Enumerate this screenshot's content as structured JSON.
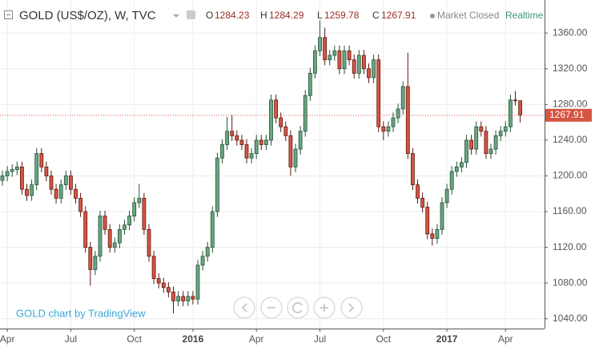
{
  "chart_data": {
    "type": "candlestick",
    "title": "GOLD (US$/OZ), W, TVC",
    "ohlc_labels": [
      "O",
      "H",
      "L",
      "C"
    ],
    "status": "Market Closed",
    "feed": "Realtime",
    "watermark": "GOLD chart by TradingView",
    "up_color": "#6ba583",
    "down_color": "#d75442",
    "grid": true,
    "categories": [
      null,
      "Apr",
      null,
      null,
      null,
      null,
      null,
      null,
      null,
      null,
      null,
      null,
      null,
      null,
      "Jul",
      null,
      null,
      null,
      null,
      null,
      null,
      null,
      null,
      null,
      null,
      null,
      null,
      "Oct",
      null,
      null,
      null,
      null,
      null,
      null,
      null,
      null,
      null,
      null,
      null,
      "2016",
      null,
      null,
      null,
      null,
      null,
      null,
      null,
      null,
      null,
      null,
      null,
      null,
      "Apr",
      null,
      null,
      null,
      null,
      null,
      null,
      null,
      null,
      null,
      null,
      null,
      null,
      "Jul",
      null,
      null,
      null,
      null,
      null,
      null,
      null,
      null,
      null,
      null,
      null,
      null,
      "Oct",
      null,
      null,
      null,
      null,
      null,
      null,
      null,
      null,
      null,
      null,
      null,
      null,
      "2017",
      null,
      null,
      null,
      null,
      null,
      null,
      null,
      null,
      null,
      null,
      null,
      "Apr",
      null,
      null,
      null
    ],
    "open": [
      1195,
      1200,
      1205,
      1207,
      1210,
      1185,
      1178,
      1190,
      1225,
      1210,
      1200,
      1185,
      1175,
      1190,
      1200,
      1185,
      1175,
      1160,
      1120,
      1095,
      1110,
      1155,
      1140,
      1120,
      1125,
      1140,
      1145,
      1155,
      1170,
      1175,
      1140,
      1110,
      1085,
      1080,
      1075,
      1070,
      1060,
      1065,
      1060,
      1065,
      1062,
      1100,
      1110,
      1120,
      1160,
      1220,
      1235,
      1250,
      1245,
      1240,
      1235,
      1220,
      1225,
      1240,
      1235,
      1240,
      1285,
      1265,
      1255,
      1245,
      1210,
      1230,
      1250,
      1290,
      1315,
      1340,
      1355,
      1330,
      1335,
      1340,
      1320,
      1340,
      1330,
      1315,
      1335,
      1320,
      1310,
      1330,
      1255,
      1250,
      1255,
      1265,
      1275,
      1300,
      1225,
      1190,
      1175,
      1165,
      1135,
      1130,
      1140,
      1170,
      1185,
      1205,
      1210,
      1215,
      1240,
      1230,
      1255,
      1250,
      1225,
      1230,
      1245,
      1250,
      1255,
      1285,
      1284.23
    ],
    "high": [
      1206,
      1211,
      1213,
      1216,
      1216,
      1191,
      1196,
      1231,
      1231,
      1216,
      1206,
      1191,
      1196,
      1206,
      1206,
      1191,
      1181,
      1166,
      1126,
      1116,
      1161,
      1161,
      1146,
      1131,
      1146,
      1151,
      1161,
      1176,
      1191,
      1181,
      1146,
      1116,
      1091,
      1086,
      1081,
      1076,
      1071,
      1071,
      1071,
      1071,
      1106,
      1116,
      1126,
      1166,
      1226,
      1241,
      1266,
      1268,
      1251,
      1246,
      1241,
      1231,
      1246,
      1246,
      1246,
      1291,
      1291,
      1271,
      1261,
      1251,
      1236,
      1256,
      1296,
      1321,
      1346,
      1374,
      1366,
      1341,
      1346,
      1346,
      1346,
      1346,
      1336,
      1341,
      1341,
      1326,
      1336,
      1336,
      1261,
      1261,
      1271,
      1281,
      1306,
      1338,
      1231,
      1196,
      1181,
      1171,
      1141,
      1146,
      1176,
      1191,
      1211,
      1216,
      1221,
      1246,
      1246,
      1261,
      1261,
      1256,
      1236,
      1251,
      1256,
      1261,
      1291,
      1295,
      1284.29
    ],
    "low": [
      1189,
      1194,
      1199,
      1201,
      1179,
      1172,
      1172,
      1184,
      1204,
      1194,
      1179,
      1169,
      1169,
      1184,
      1179,
      1169,
      1154,
      1114,
      1077,
      1089,
      1104,
      1134,
      1114,
      1114,
      1119,
      1134,
      1139,
      1149,
      1164,
      1134,
      1104,
      1079,
      1074,
      1069,
      1064,
      1046,
      1054,
      1054,
      1054,
      1056,
      1056,
      1094,
      1104,
      1114,
      1154,
      1214,
      1229,
      1239,
      1234,
      1229,
      1214,
      1214,
      1219,
      1229,
      1229,
      1234,
      1259,
      1249,
      1239,
      1200,
      1204,
      1224,
      1244,
      1284,
      1309,
      1334,
      1324,
      1324,
      1329,
      1314,
      1314,
      1324,
      1309,
      1309,
      1314,
      1304,
      1304,
      1249,
      1240,
      1244,
      1249,
      1259,
      1269,
      1219,
      1184,
      1169,
      1159,
      1129,
      1122,
      1124,
      1134,
      1164,
      1179,
      1199,
      1204,
      1209,
      1224,
      1224,
      1244,
      1219,
      1219,
      1224,
      1239,
      1244,
      1249,
      1279,
      1259.78
    ],
    "close": [
      1200,
      1205,
      1207,
      1210,
      1185,
      1178,
      1190,
      1225,
      1210,
      1200,
      1185,
      1175,
      1190,
      1200,
      1185,
      1175,
      1160,
      1120,
      1095,
      1110,
      1155,
      1140,
      1120,
      1125,
      1140,
      1145,
      1155,
      1170,
      1175,
      1140,
      1110,
      1085,
      1080,
      1075,
      1070,
      1060,
      1065,
      1060,
      1065,
      1062,
      1100,
      1110,
      1120,
      1160,
      1220,
      1235,
      1250,
      1245,
      1240,
      1235,
      1220,
      1225,
      1240,
      1235,
      1240,
      1285,
      1265,
      1255,
      1245,
      1210,
      1230,
      1250,
      1290,
      1315,
      1340,
      1355,
      1330,
      1335,
      1340,
      1320,
      1340,
      1330,
      1315,
      1335,
      1320,
      1310,
      1330,
      1255,
      1250,
      1255,
      1265,
      1275,
      1300,
      1225,
      1190,
      1175,
      1165,
      1135,
      1130,
      1140,
      1170,
      1185,
      1205,
      1210,
      1215,
      1240,
      1230,
      1255,
      1250,
      1225,
      1230,
      1245,
      1250,
      1255,
      1285,
      1284.23,
      1267.91
    ],
    "ylim": [
      1029,
      1397
    ],
    "yticks": [
      {
        "value": 1040,
        "label": "1040.00"
      },
      {
        "value": 1080,
        "label": "1080.00"
      },
      {
        "value": 1120,
        "label": "1120.00"
      },
      {
        "value": 1160,
        "label": "1160.00"
      },
      {
        "value": 1200,
        "label": "1200.00"
      },
      {
        "value": 1240,
        "label": "1240.00"
      },
      {
        "value": 1280,
        "label": "1280.00"
      },
      {
        "value": 1320,
        "label": "1320.00"
      },
      {
        "value": 1360,
        "label": "1360.00"
      }
    ]
  }
}
